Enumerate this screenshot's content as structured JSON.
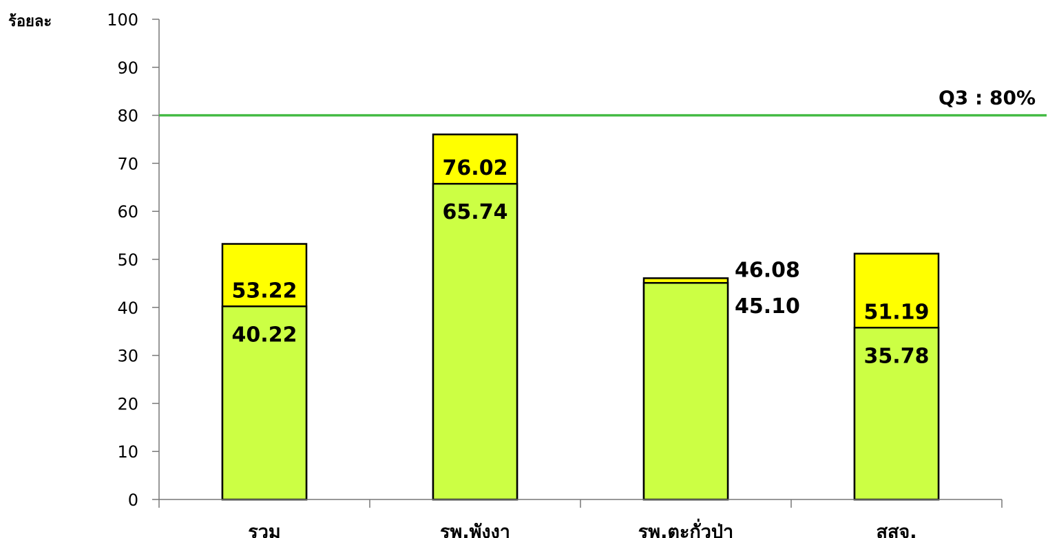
{
  "chart_data": {
    "type": "bar",
    "ylabel": "ร้อยละ",
    "ylim": [
      0,
      100
    ],
    "yticks": [
      0,
      10,
      20,
      30,
      40,
      50,
      60,
      70,
      80,
      90,
      100
    ],
    "categories": [
      "รวม",
      "รพ.พังงา",
      "รพ.ตะกั่วป่า",
      "สสจ."
    ],
    "series": [
      {
        "values": [
          53.22,
          76.02,
          46.08,
          51.19
        ],
        "labels": [
          "53.22",
          "76.02",
          "46.08",
          "51.19"
        ],
        "color": "#FFFF00"
      },
      {
        "values": [
          40.22,
          65.74,
          45.1,
          35.78
        ],
        "labels": [
          "40.22",
          "65.74",
          "45.10",
          "35.78"
        ],
        "color": "#CCFF44"
      }
    ],
    "target": {
      "value": 80,
      "label": "Q3 : 80%",
      "color": "#44BB44"
    },
    "grid": false,
    "legend": "none"
  }
}
